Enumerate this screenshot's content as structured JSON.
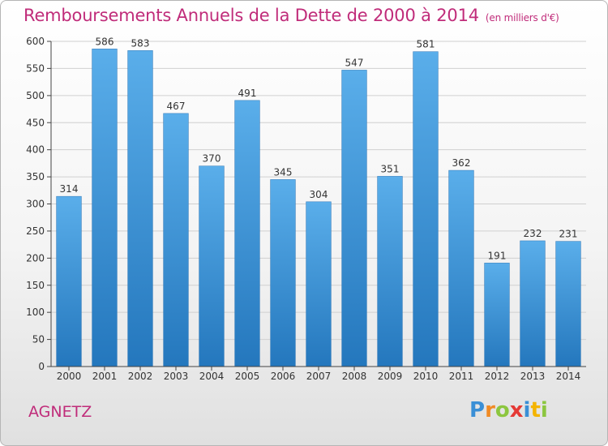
{
  "header": {
    "title": "Remboursements Annuels de la Dette de 2000 à 2014",
    "subtitle": "(en milliers d'€)"
  },
  "footer": {
    "commune": "AGNETZ",
    "logo_letters": [
      {
        "ch": "P",
        "color": "#3a8fd6"
      },
      {
        "ch": "r",
        "color": "#f08a24"
      },
      {
        "ch": "o",
        "color": "#8cc63f"
      },
      {
        "ch": "x",
        "color": "#e53935"
      },
      {
        "ch": "i",
        "color": "#3a8fd6"
      },
      {
        "ch": "t",
        "color": "#f4b400"
      },
      {
        "ch": "i",
        "color": "#8cc63f"
      }
    ]
  },
  "chart_data": {
    "type": "bar",
    "title": "Remboursements Annuels de la Dette de 2000 à 2014",
    "subtitle": "(en milliers d'€)",
    "xlabel": "",
    "ylabel": "",
    "categories": [
      "2000",
      "2001",
      "2002",
      "2003",
      "2004",
      "2005",
      "2006",
      "2007",
      "2008",
      "2009",
      "2010",
      "2011",
      "2012",
      "2013",
      "2014"
    ],
    "values": [
      314,
      586,
      583,
      467,
      370,
      491,
      345,
      304,
      547,
      351,
      581,
      362,
      191,
      232,
      231
    ],
    "data_labels": [
      "314",
      "586",
      "583",
      "467",
      "370",
      "491",
      "345",
      "304",
      "547",
      "351",
      "581",
      "362",
      "191",
      "232",
      "231"
    ],
    "ylim": [
      0,
      600
    ],
    "yticks": [
      0,
      50,
      100,
      150,
      200,
      250,
      300,
      350,
      400,
      450,
      500,
      550,
      600
    ],
    "grid": true,
    "bar_color": "#3d8fd6"
  }
}
